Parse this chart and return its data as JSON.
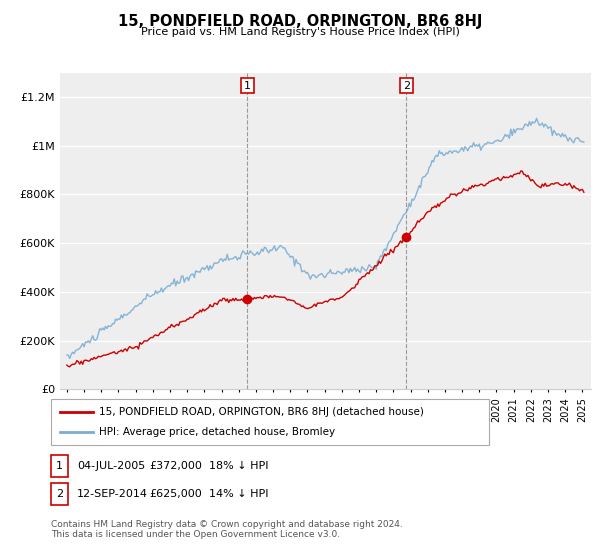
{
  "title": "15, PONDFIELD ROAD, ORPINGTON, BR6 8HJ",
  "subtitle": "Price paid vs. HM Land Registry's House Price Index (HPI)",
  "legend_label_red": "15, PONDFIELD ROAD, ORPINGTON, BR6 8HJ (detached house)",
  "legend_label_blue": "HPI: Average price, detached house, Bromley",
  "footnote": "Contains HM Land Registry data © Crown copyright and database right 2024.\nThis data is licensed under the Open Government Licence v3.0.",
  "sale1_date": "04-JUL-2005",
  "sale1_price": "£372,000",
  "sale1_hpi": "18% ↓ HPI",
  "sale2_date": "12-SEP-2014",
  "sale2_price": "£625,000",
  "sale2_hpi": "14% ↓ HPI",
  "sale1_year": 2005.5,
  "sale1_value": 372000,
  "sale2_year": 2014.75,
  "sale2_value": 625000,
  "ylabel_ticks": [
    "£0",
    "£200K",
    "£400K",
    "£600K",
    "£800K",
    "£1M",
    "£1.2M"
  ],
  "ytick_values": [
    0,
    200000,
    400000,
    600000,
    800000,
    1000000,
    1200000
  ],
  "ylim": [
    0,
    1300000
  ],
  "color_red": "#cc0000",
  "color_blue": "#7aadd4",
  "background_color": "#ffffff",
  "plot_bg_color": "#eeeeee"
}
